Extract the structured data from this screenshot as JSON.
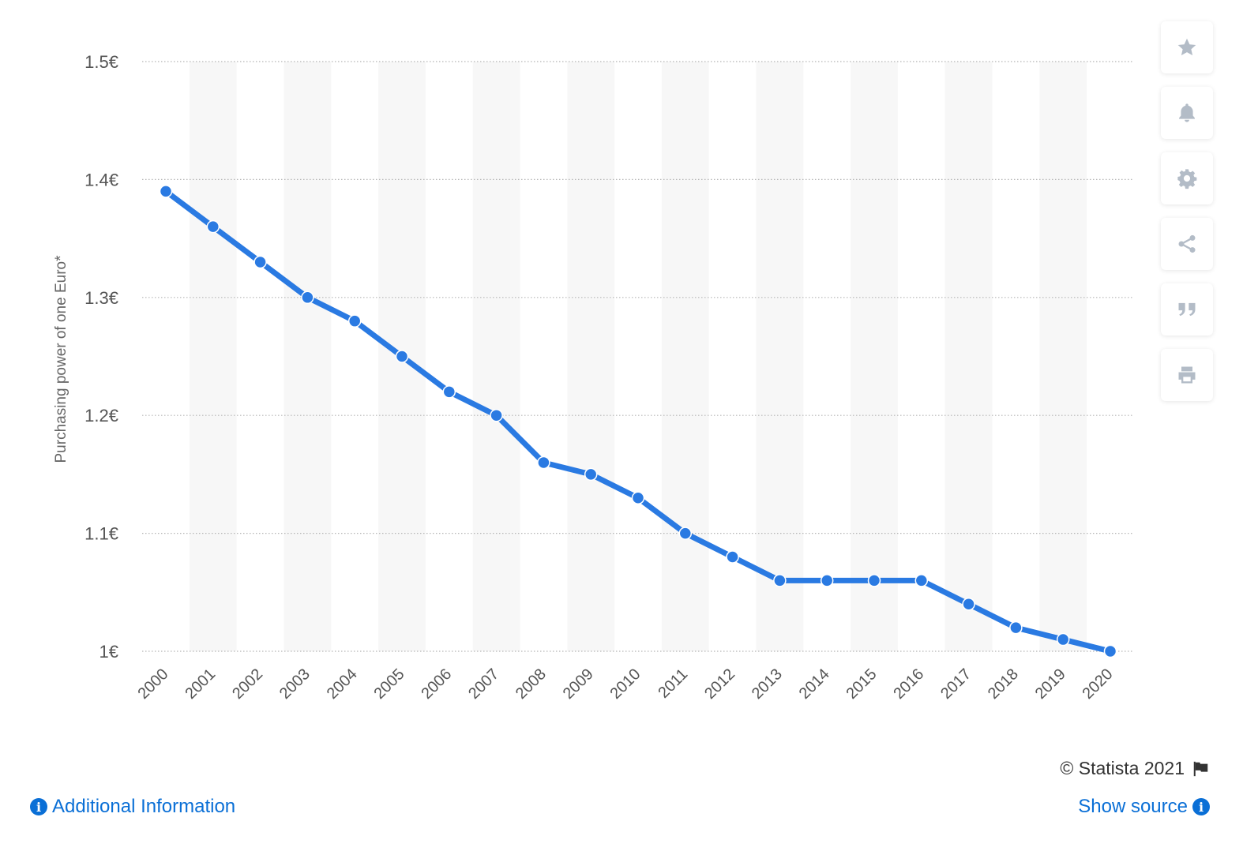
{
  "chart_data": {
    "type": "line",
    "title": "",
    "xlabel": "",
    "ylabel": "Purchasing power of one Euro*",
    "categories": [
      "2000",
      "2001",
      "2002",
      "2003",
      "2004",
      "2005",
      "2006",
      "2007",
      "2008",
      "2009",
      "2010",
      "2011",
      "2012",
      "2013",
      "2014",
      "2015",
      "2016",
      "2017",
      "2018",
      "2019",
      "2020"
    ],
    "series": [
      {
        "values": [
          1.39,
          1.36,
          1.33,
          1.3,
          1.28,
          1.25,
          1.22,
          1.2,
          1.16,
          1.15,
          1.13,
          1.1,
          1.08,
          1.06,
          1.06,
          1.06,
          1.06,
          1.04,
          1.02,
          1.01,
          1.0
        ]
      }
    ],
    "ylim": [
      1.0,
      1.5
    ],
    "yticks": [
      1.0,
      1.1,
      1.2,
      1.3,
      1.4,
      1.5
    ],
    "ytick_labels": [
      "1€",
      "1.1€",
      "1.2€",
      "1.3€",
      "1.4€",
      "1.5€"
    ],
    "grid": true,
    "line_color": "#2a7ae2",
    "band_color": "#f7f7f7"
  },
  "toolbar": {
    "items": [
      {
        "icon": "star-icon",
        "name": "favorite-button"
      },
      {
        "icon": "bell-icon",
        "name": "notification-button"
      },
      {
        "icon": "gear-icon",
        "name": "settings-button"
      },
      {
        "icon": "share-icon",
        "name": "share-button"
      },
      {
        "icon": "quote-icon",
        "name": "cite-button"
      },
      {
        "icon": "print-icon",
        "name": "print-button"
      }
    ],
    "icon_color": "#b3bcc7"
  },
  "footer": {
    "credit": "© Statista 2021",
    "additional_info": "Additional Information",
    "show_source": "Show source"
  }
}
